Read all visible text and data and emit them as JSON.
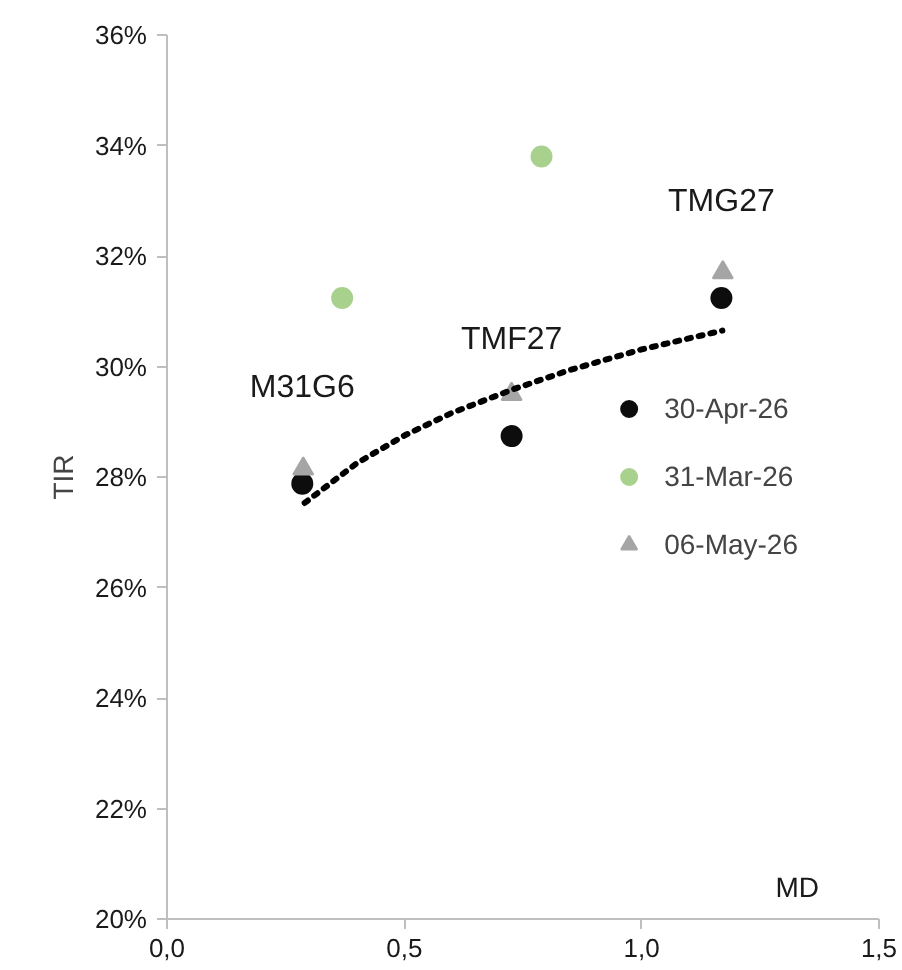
{
  "chart_data": {
    "type": "scatter",
    "xlabel": "MD",
    "ylabel": "TIR",
    "xlim": [
      0,
      1.5
    ],
    "ylim": [
      20,
      36
    ],
    "xticks": [
      {
        "value": 0,
        "label": "0,0"
      },
      {
        "value": 0.5,
        "label": "0,5"
      },
      {
        "value": 1,
        "label": "1,0"
      },
      {
        "value": 1.5,
        "label": "1,5"
      }
    ],
    "yticks": [
      {
        "value": 20,
        "label": "20%"
      },
      {
        "value": 22,
        "label": "22%"
      },
      {
        "value": 24,
        "label": "24%"
      },
      {
        "value": 26,
        "label": "26%"
      },
      {
        "value": 28,
        "label": "28%"
      },
      {
        "value": 30,
        "label": "30%"
      },
      {
        "value": 32,
        "label": "32%"
      },
      {
        "value": 34,
        "label": "34%"
      },
      {
        "value": 36,
        "label": "36%"
      }
    ],
    "grid": false,
    "legend": "right",
    "series": [
      {
        "name": "30-Apr-26",
        "color": "#0d0d0d",
        "marker": "circle",
        "x": [
          0.285,
          0.726,
          1.168
        ],
        "values": [
          27.88,
          28.74,
          31.24
        ]
      },
      {
        "name": "31-Mar-26",
        "color": "#a9d18e",
        "marker": "circle",
        "x": [
          0.369,
          0.789
        ],
        "values": [
          31.24,
          33.8
        ]
      },
      {
        "name": "06-May-26",
        "color": "#a5a5a5",
        "marker": "triangle",
        "x": [
          0.287,
          0.726,
          1.171
        ],
        "values": [
          28.15,
          29.5,
          31.7
        ]
      },
      {
        "type": "line",
        "color": "#000000",
        "line_style": "dotted",
        "marker": "none",
        "x": [
          0.29,
          0.4,
          0.5,
          0.6,
          0.73,
          0.85,
          1.0,
          1.17
        ],
        "values": [
          27.53,
          28.25,
          28.75,
          29.16,
          29.59,
          29.94,
          30.31,
          30.65
        ]
      }
    ],
    "annotations": [
      "M31G6",
      "TMF27",
      "TMG27"
    ]
  }
}
